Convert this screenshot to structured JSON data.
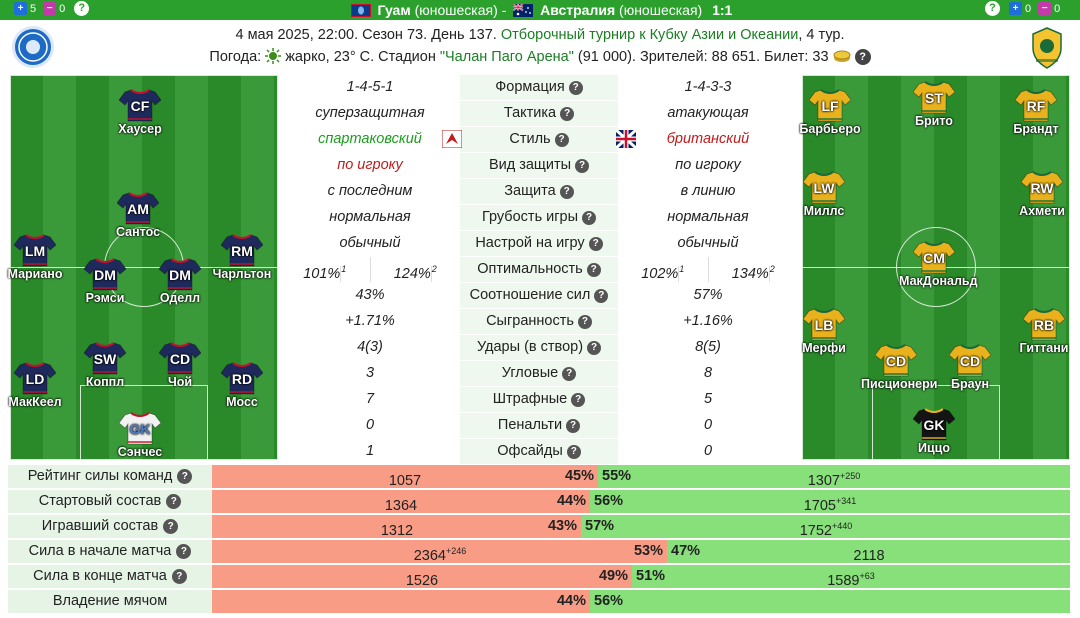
{
  "header": {
    "left_counters": [
      {
        "icon": "plus-box-icon",
        "value": "5"
      },
      {
        "icon": "minus-box-icon",
        "value": "0"
      }
    ],
    "right_counters": [
      {
        "icon": "plus-box-icon",
        "value": "0"
      },
      {
        "icon": "minus-box-icon",
        "value": "0"
      }
    ],
    "home_team": "Гуам",
    "home_suffix": "(юношеская)",
    "separator": "-",
    "away_team": "Австралия",
    "away_suffix": "(юношеская)",
    "score": "1:1"
  },
  "info": {
    "date_prefix": "4 мая 2025, 22:00. Сезон 73. День 137.",
    "tournament": "Отборочный турнир к Кубку Азии и Океании",
    "round": ", 4 тур.",
    "weather_label": "Погода:",
    "weather": "жарко, 23° С. Стадион",
    "stadium": "\"Чалан Паго Арена\"",
    "capacity": "(91 000). Зрителей: 88 651. Билет: 33"
  },
  "home_players": [
    {
      "pos": "CF",
      "name": "Хаусер"
    },
    {
      "pos": "AM",
      "name": "Сантос"
    },
    {
      "pos": "LM",
      "name": "Мариано"
    },
    {
      "pos": "RM",
      "name": "Чарльтон"
    },
    {
      "pos": "DM",
      "name": "Рэмси"
    },
    {
      "pos": "DM",
      "name": "Оделл"
    },
    {
      "pos": "SW",
      "name": "Коппл"
    },
    {
      "pos": "CD",
      "name": "Чой"
    },
    {
      "pos": "LD",
      "name": "МакКеел"
    },
    {
      "pos": "RD",
      "name": "Мосс"
    },
    {
      "pos": "GK",
      "name": "Сэнчес"
    }
  ],
  "away_players": [
    {
      "pos": "LF",
      "name": "Барбьеро"
    },
    {
      "pos": "ST",
      "name": "Брито"
    },
    {
      "pos": "RF",
      "name": "Брандт"
    },
    {
      "pos": "LW",
      "name": "Миллс"
    },
    {
      "pos": "RW",
      "name": "Ахмети"
    },
    {
      "pos": "CM",
      "name": "МакДональд"
    },
    {
      "pos": "LB",
      "name": "Мерфи"
    },
    {
      "pos": "RB",
      "name": "Гиттани"
    },
    {
      "pos": "CD",
      "name": "Писционери"
    },
    {
      "pos": "CD",
      "name": "Браун"
    },
    {
      "pos": "GK",
      "name": "Иццо"
    }
  ],
  "stats": [
    {
      "label": "Формация",
      "q": true,
      "home": "1-4-5-1",
      "away": "1-4-3-3"
    },
    {
      "label": "Тактика",
      "q": true,
      "home": "суперзащитная",
      "away": "атакующая"
    },
    {
      "label": "Стиль",
      "q": true,
      "home": "спартаковский",
      "away": "британский",
      "home_class": "green",
      "away_class": "red",
      "icons": true
    },
    {
      "label": "Вид защиты",
      "q": true,
      "home": "по игроку",
      "away": "по игроку",
      "home_class": "red"
    },
    {
      "label": "Защита",
      "q": true,
      "home": "с последним",
      "away": "в линию"
    },
    {
      "label": "Грубость игры",
      "q": true,
      "home": "нормальная",
      "away": "нормальная"
    },
    {
      "label": "Настрой на игру",
      "q": true,
      "home": "обычный",
      "away": "обычный"
    },
    {
      "label": "Оптимальность",
      "q": true,
      "split": true,
      "home_a": "101%",
      "home_a_sup": "1",
      "home_b": "124%",
      "home_b_sup": "2",
      "away_a": "102%",
      "away_a_sup": "1",
      "away_b": "134%",
      "away_b_sup": "2"
    },
    {
      "label": "Соотношение сил",
      "q": true,
      "home": "43%",
      "away": "57%"
    },
    {
      "label": "Сыгранность",
      "q": true,
      "home": "+1.71%",
      "away": "+1.16%"
    },
    {
      "label": "Удары (в створ)",
      "q": true,
      "home": "4(3)",
      "away": "8(5)"
    },
    {
      "label": "Угловые",
      "q": true,
      "home": "3",
      "away": "8"
    },
    {
      "label": "Штрафные",
      "q": true,
      "home": "7",
      "away": "5"
    },
    {
      "label": "Пенальти",
      "q": true,
      "home": "0",
      "away": "0"
    },
    {
      "label": "Офсайды",
      "q": true,
      "home": "1",
      "away": "0"
    }
  ],
  "ratings": [
    {
      "label": "Рейтинг силы команд",
      "q": true,
      "home_val": "1057",
      "home_sup": "",
      "home_pct": "45%",
      "away_pct": "55%",
      "away_val": "1307",
      "away_sup": "+250",
      "split": 0.45
    },
    {
      "label": "Стартовый состав",
      "q": true,
      "home_val": "1364",
      "home_sup": "",
      "home_pct": "44%",
      "away_pct": "56%",
      "away_val": "1705",
      "away_sup": "+341",
      "split": 0.44
    },
    {
      "label": "Игравший состав",
      "q": true,
      "home_val": "1312",
      "home_sup": "",
      "home_pct": "43%",
      "away_pct": "57%",
      "away_val": "1752",
      "away_sup": "+440",
      "split": 0.43
    },
    {
      "label": "Сила в начале матча",
      "q": true,
      "home_val": "2364",
      "home_sup": "+246",
      "home_pct": "53%",
      "away_pct": "47%",
      "away_val": "2118",
      "away_sup": "",
      "split": 0.53
    },
    {
      "label": "Сила в конце матча",
      "q": true,
      "home_val": "1526",
      "home_sup": "",
      "home_pct": "49%",
      "away_pct": "51%",
      "away_val": "1589",
      "away_sup": "+63",
      "split": 0.49
    },
    {
      "label": "Владение мячом",
      "q": false,
      "home_val": "",
      "home_sup": "",
      "home_pct": "44%",
      "away_pct": "56%",
      "away_val": "",
      "away_sup": "",
      "split": 0.44
    }
  ],
  "colors": {
    "header": "#2ca02c",
    "home_bar": "#f89c86",
    "away_bar": "#88e07a",
    "home_shirt": "#1f2a5c",
    "away_shirt": "#e9b21c"
  }
}
